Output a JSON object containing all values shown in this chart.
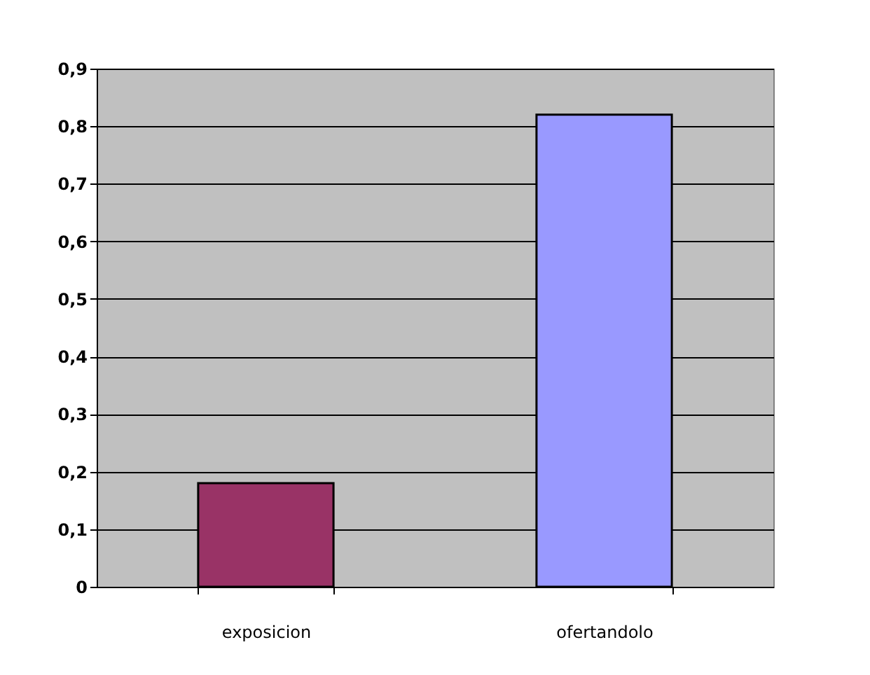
{
  "chart_data": {
    "type": "bar",
    "categories": [
      "exposicion",
      "ofertandolo"
    ],
    "values": [
      0.18,
      0.82
    ],
    "colors": [
      "#993366",
      "#9999ff"
    ],
    "ylim": [
      0,
      0.9
    ],
    "yticks": [
      {
        "value": 0,
        "label": "0"
      },
      {
        "value": 0.1,
        "label": "0,1"
      },
      {
        "value": 0.2,
        "label": "0,2"
      },
      {
        "value": 0.3,
        "label": "0,3"
      },
      {
        "value": 0.4,
        "label": "0,4"
      },
      {
        "value": 0.5,
        "label": "0,5"
      },
      {
        "value": 0.6,
        "label": "0,6"
      },
      {
        "value": 0.7,
        "label": "0,7"
      },
      {
        "value": 0.8,
        "label": "0,8"
      },
      {
        "value": 0.9,
        "label": "0,9"
      }
    ],
    "grid": "y"
  }
}
